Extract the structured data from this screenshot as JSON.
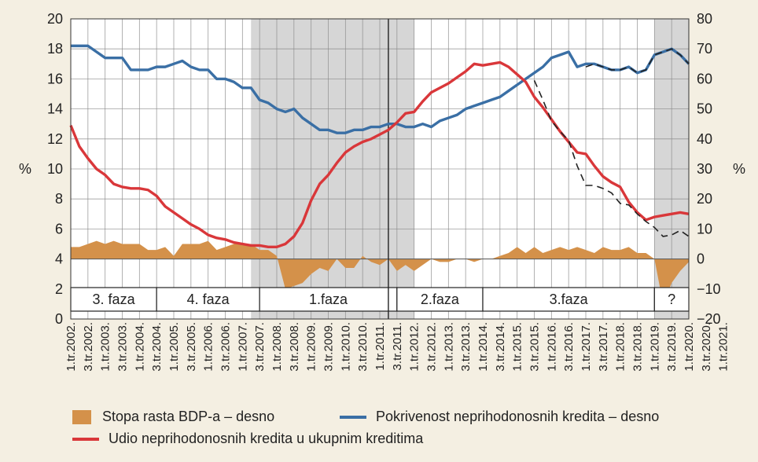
{
  "chart_data": {
    "type": "line",
    "y_left": {
      "label": "%",
      "range": [
        0,
        20
      ],
      "ticks": [
        0,
        2,
        4,
        6,
        8,
        10,
        12,
        14,
        16,
        18,
        20
      ]
    },
    "y_right": {
      "label": "%",
      "range": [
        -20,
        80
      ],
      "ticks": [
        -20,
        -10,
        0,
        10,
        20,
        30,
        40,
        50,
        60,
        70,
        80
      ]
    },
    "x_ticks": [
      "1.tr.2002.",
      "3.tr.2002.",
      "1.tr.2003.",
      "3.tr.2003.",
      "1.tr.2004.",
      "3.tr.2004.",
      "1.tr.2005.",
      "3.tr.2005.",
      "1.tr.2006.",
      "3.tr.2006.",
      "1.tr.2007.",
      "3.tr.2007.",
      "1.tr.2008.",
      "3.tr.2008.",
      "1.tr.2009.",
      "3.tr.2009.",
      "1.tr.2010.",
      "3.tr.2010.",
      "1.tr.2011.",
      "3.tr.2011.",
      "1.tr.2012.",
      "3.tr.2012.",
      "1.tr.2013.",
      "3.tr.2013.",
      "1.tr.2014.",
      "3.tr.2014.",
      "1.tr.2015.",
      "3.tr.2015.",
      "1.tr.2016.",
      "3.tr.2016.",
      "1.tr.2017.",
      "3.tr.2017.",
      "1.tr.2018.",
      "3.tr.2018.",
      "1.tr.2019.",
      "3.tr.2019.",
      "1.tr.2020.",
      "3.tr.2020.",
      "1.tr.2021."
    ],
    "phases": [
      {
        "label": "3. faza",
        "from_q": 0,
        "to_q": 10
      },
      {
        "label": "4. faza",
        "from_q": 10,
        "to_q": 22
      },
      {
        "label": "1.faza",
        "from_q": 22,
        "to_q": 38
      },
      {
        "label": "2.faza",
        "from_q": 38,
        "to_q": 48
      },
      {
        "label": "3.faza",
        "from_q": 48,
        "to_q": 68
      },
      {
        "label": "?",
        "from_q": 68,
        "to_q": 72
      }
    ],
    "shaded": [
      {
        "from_q": 21,
        "to_q": 40
      },
      {
        "from_q": 68,
        "to_q": 72
      }
    ],
    "vline_q": 37,
    "series": [
      {
        "name": "Stopa rasta BDP-a – desno",
        "axis": "right",
        "kind": "area",
        "color": "#d4914a",
        "values": [
          4,
          4,
          5,
          6,
          5,
          6,
          5,
          5,
          5,
          3,
          3,
          4,
          1,
          5,
          5,
          5,
          6,
          3,
          4,
          5,
          5,
          5,
          3,
          3,
          1,
          -10,
          -9,
          -8,
          -5,
          -3,
          -4,
          0,
          -3,
          -3,
          1,
          -1,
          -2,
          0,
          -4,
          -2,
          -4,
          -2,
          0,
          -1,
          -1,
          0,
          0,
          -1,
          0,
          0,
          1,
          2,
          4,
          2,
          4,
          2,
          3,
          4,
          3,
          4,
          3,
          2,
          4,
          3,
          3,
          4,
          2,
          2,
          0,
          -15,
          -8,
          -4,
          -1
        ]
      },
      {
        "name": "Pokrivenost neprihodonosnih kredita – desno",
        "axis": "right",
        "kind": "line",
        "color": "#3a6fa5",
        "values": [
          71,
          71,
          71,
          69,
          67,
          67,
          67,
          63,
          63,
          63,
          64,
          64,
          65,
          66,
          64,
          63,
          63,
          60,
          60,
          59,
          57,
          57,
          53,
          52,
          50,
          49,
          50,
          47,
          45,
          43,
          43,
          42,
          42,
          43,
          43,
          44,
          44,
          45,
          45,
          44,
          44,
          45,
          44,
          46,
          47,
          48,
          50,
          51,
          52,
          53,
          54,
          56,
          58,
          60,
          62,
          64,
          67,
          68,
          69,
          64,
          65,
          65,
          64,
          63,
          63,
          64,
          62,
          63,
          68,
          69,
          70,
          68,
          65
        ]
      },
      {
        "name": "Udio neprihodonosnih kredita u ukupnim kreditima",
        "axis": "left",
        "kind": "line",
        "color": "#d9373a",
        "values": [
          12.9,
          11.5,
          10.7,
          10.0,
          9.6,
          9.0,
          8.8,
          8.7,
          8.7,
          8.6,
          8.2,
          7.5,
          7.1,
          6.7,
          6.3,
          6.0,
          5.6,
          5.4,
          5.3,
          5.1,
          5.0,
          4.9,
          4.9,
          4.8,
          4.8,
          5.0,
          5.5,
          6.4,
          7.9,
          9.0,
          9.6,
          10.4,
          11.1,
          11.5,
          11.8,
          12.0,
          12.3,
          12.6,
          13.1,
          13.7,
          13.8,
          14.5,
          15.1,
          15.4,
          15.7,
          16.1,
          16.5,
          17.0,
          16.9,
          17.0,
          17.1,
          16.8,
          16.3,
          15.8,
          14.8,
          14.1,
          13.3,
          12.5,
          11.8,
          11.1,
          11.0,
          10.2,
          9.5,
          9.1,
          8.8,
          7.8,
          7.1,
          6.6,
          6.8,
          6.9,
          7.0,
          7.1,
          7.0
        ]
      },
      {
        "name": "",
        "axis": "left",
        "kind": "dashed",
        "color": "#222",
        "from_q": 54,
        "values": [
          15.9,
          14.6,
          13.2,
          12.5,
          11.9,
          10.2,
          8.9,
          8.9,
          8.7,
          8.4,
          7.7,
          7.6,
          7.0,
          6.5,
          6.1,
          5.5,
          5.6,
          5.9,
          5.5
        ]
      },
      {
        "name": "",
        "axis": "right",
        "kind": "dashed",
        "color": "#222",
        "from_q": 60,
        "values": [
          64,
          65,
          64,
          63,
          63,
          64,
          62,
          63,
          68,
          69,
          70,
          68,
          65
        ]
      }
    ]
  },
  "legend": [
    {
      "label": "Stopa rasta BDP-a – desno"
    },
    {
      "label": "Pokrivenost neprihodonosnih kredita – desno"
    },
    {
      "label": "Udio neprihodonosnih kredita u ukupnim kreditima"
    }
  ],
  "colors": {
    "bg": "#f4efe2",
    "plot": "#ffffff",
    "shade": "#d6d6d6",
    "grid": "#888888"
  }
}
